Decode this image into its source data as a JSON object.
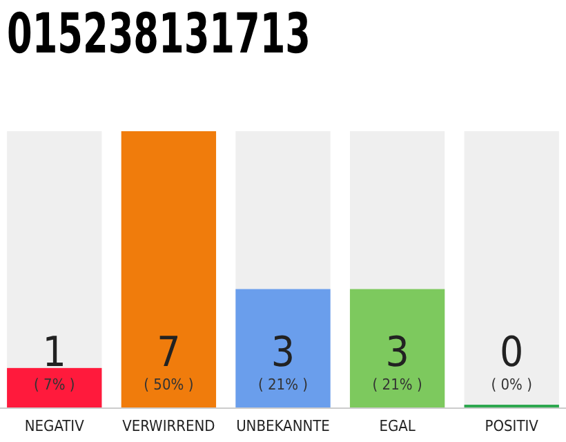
{
  "chart_data": {
    "type": "bar",
    "title": "015238131713",
    "categories": [
      "NEGATIV",
      "VERWIRREND",
      "UNBEKANNTE",
      "EGAL",
      "POSITIV"
    ],
    "values": [
      1,
      7,
      3,
      3,
      0
    ],
    "colors": [
      "#ff1a3c",
      "#f07c0c",
      "#6a9eec",
      "#7dc95e",
      "#2ea84f"
    ],
    "data_labels": true,
    "annotations": [
      "( 7% )",
      "( 50% )",
      "( 21% )",
      "( 21% )",
      "( 0% )"
    ]
  }
}
